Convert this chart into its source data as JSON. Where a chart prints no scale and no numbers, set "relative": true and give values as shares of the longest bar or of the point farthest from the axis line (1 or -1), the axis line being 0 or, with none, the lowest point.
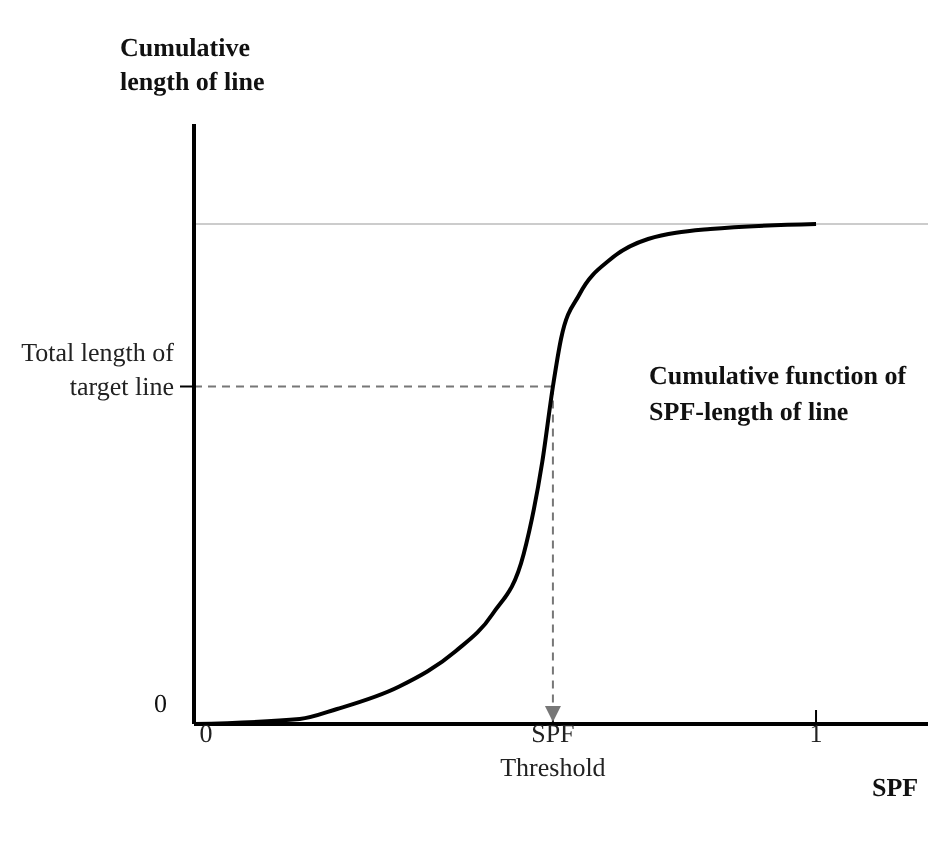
{
  "chart_data": {
    "type": "line",
    "relative": true,
    "ylabel": "Cumulative length of line",
    "xlabel": "SPF",
    "x": [
      0,
      0.17,
      0.23,
      0.33,
      0.42,
      0.48,
      0.53,
      0.56,
      0.577,
      0.59,
      0.62,
      0.67,
      0.73,
      0.83,
      1
    ],
    "series": [
      {
        "color": "#000000",
        "values": [
          0,
          0.01,
          0.03,
          0.075,
          0.145,
          0.22,
          0.34,
          0.525,
          0.675,
          0.77,
          0.86,
          0.93,
          0.97,
          0.99,
          1
        ]
      }
    ],
    "xlim": [
      0,
      1.18
    ],
    "xticks": [
      0,
      {
        "value": 0.577,
        "label": "SPF Threshold"
      },
      1
    ],
    "ref_lines": [
      {
        "axis": "y",
        "value": 0.675,
        "label": "Total length of target line",
        "color": "#777777",
        "line_style": "dashed"
      },
      {
        "axis": "x",
        "value": 0.577,
        "label": null,
        "color": "#777777",
        "line_style": "dashed"
      },
      {
        "axis": "y",
        "value": 1,
        "label": null,
        "color": "#cccccc",
        "line_style": "solid"
      }
    ],
    "annotations": [
      {
        "text": "0",
        "x": 0,
        "y": 0
      },
      "Cumulative function of SPF-length of line"
    ],
    "marker": "none",
    "line_style": "solid",
    "grid": false,
    "legend": false
  }
}
